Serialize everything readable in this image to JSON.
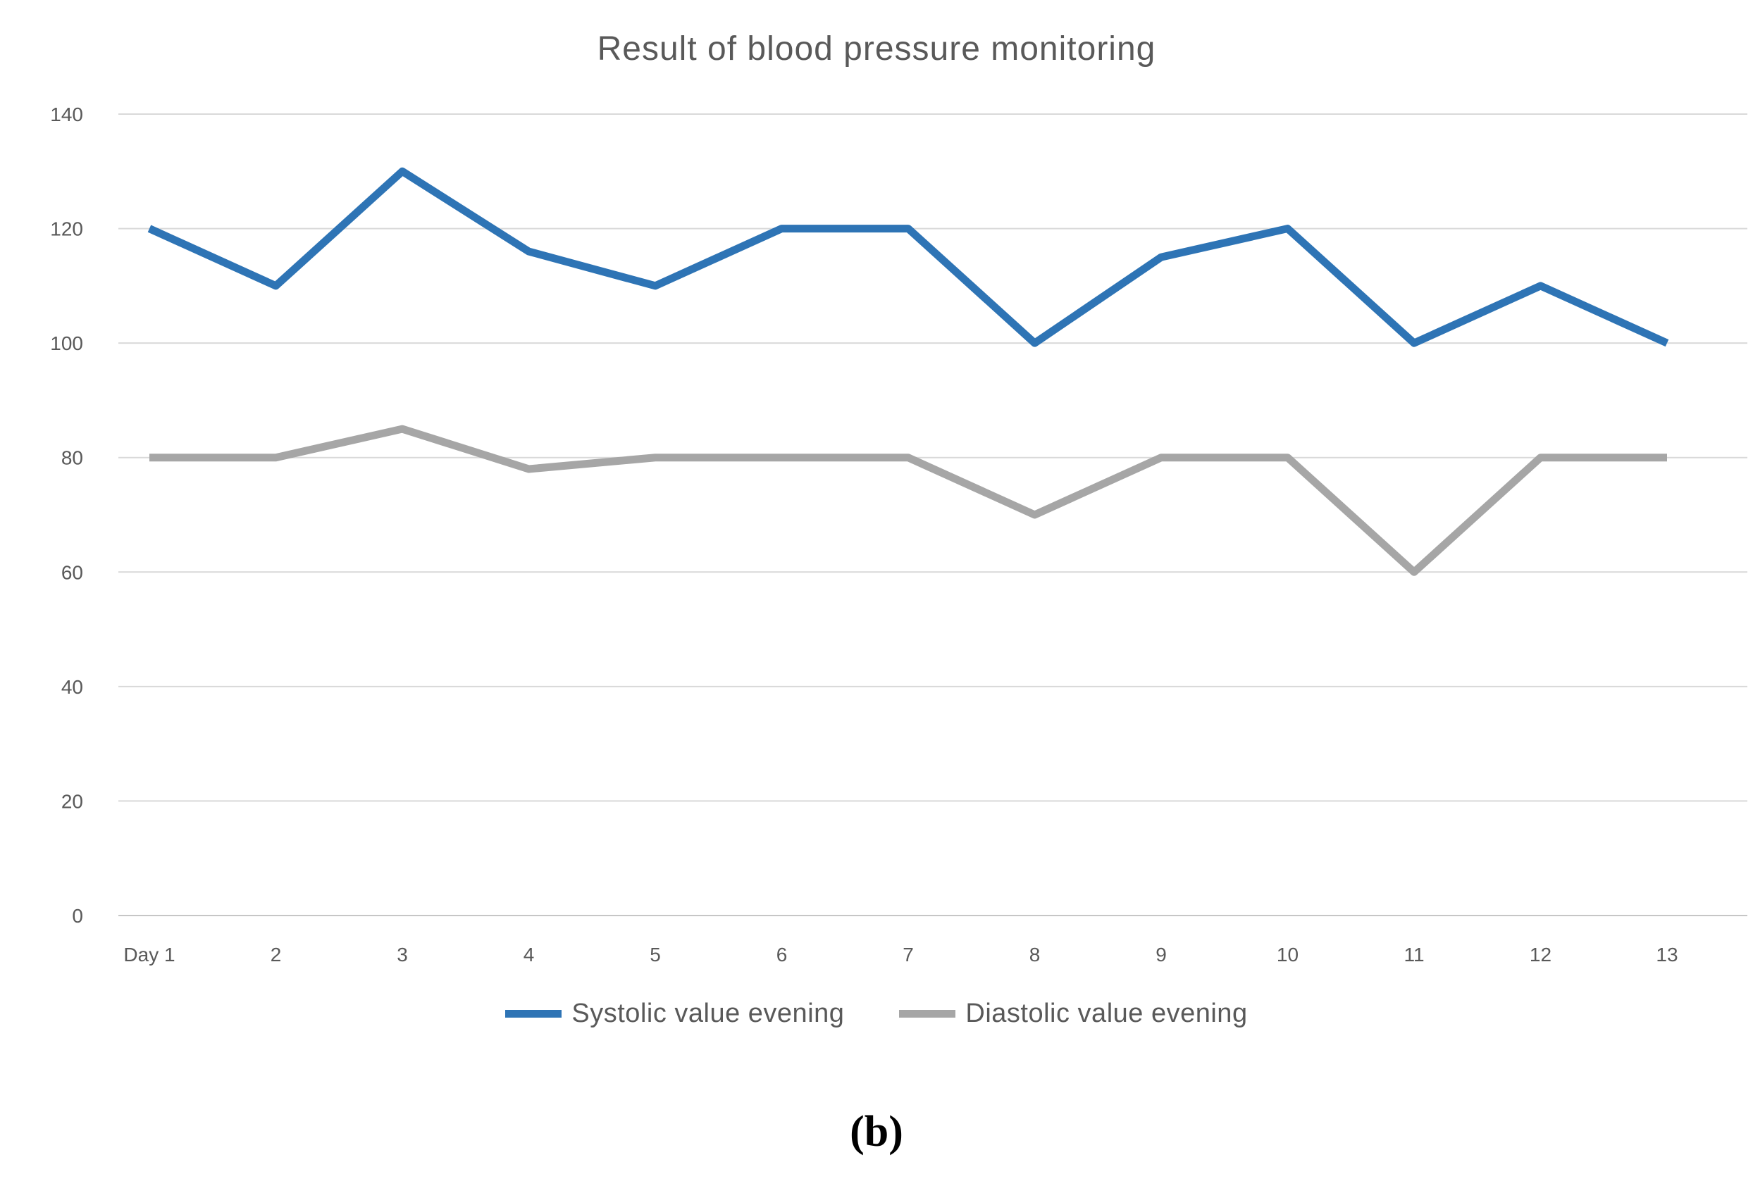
{
  "figure": {
    "caption": "(b)"
  },
  "chart_data": {
    "type": "line",
    "title": "Result of blood pressure monitoring",
    "categories": [
      "Day 1",
      "2",
      "3",
      "4",
      "5",
      "6",
      "7",
      "8",
      "9",
      "10",
      "11",
      "12",
      "13"
    ],
    "series": [
      {
        "name": "Systolic value evening",
        "color": "#2E74B5",
        "values": [
          120,
          110,
          130,
          116,
          110,
          120,
          120,
          100,
          115,
          120,
          100,
          110,
          100
        ]
      },
      {
        "name": "Diastolic value evening",
        "color": "#A6A6A6",
        "values": [
          80,
          80,
          85,
          78,
          80,
          80,
          80,
          70,
          80,
          80,
          60,
          80,
          80
        ]
      }
    ],
    "ylim": [
      0,
      140
    ],
    "yticks": [
      0,
      20,
      40,
      60,
      80,
      100,
      120,
      140
    ],
    "grid": true,
    "legend_position": "bottom",
    "colors": {
      "gridline": "#D9D9D9",
      "axis_line": "#C6C6C6",
      "tick_label": "#595959",
      "title_text": "#595959",
      "legend_text": "#595959"
    }
  }
}
